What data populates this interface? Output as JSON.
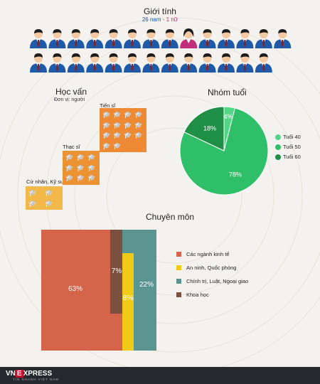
{
  "gender": {
    "title": "Giới tính",
    "male_text": "26 nam",
    "sep": " - ",
    "female_text": "1 nữ",
    "male_color": "#1e5aa8",
    "female_color": "#c0307a",
    "icons_row1": [
      "male",
      "male",
      "male",
      "male",
      "male",
      "male",
      "male",
      "male",
      "female",
      "male",
      "male",
      "male",
      "male",
      "male"
    ],
    "icons_row2": [
      "male",
      "male",
      "male",
      "male",
      "male",
      "male",
      "male",
      "male",
      "male",
      "male",
      "male",
      "male",
      "male"
    ]
  },
  "education": {
    "title": "Học vấn",
    "unit": "Đơn vị: người",
    "groups": [
      {
        "label": "Cử nhân, Kỹ sư",
        "count": 4,
        "color": "#f2b94a"
      },
      {
        "label": "Thạc sĩ",
        "count": 9,
        "color": "#ec9233"
      },
      {
        "label": "Tiến sĩ",
        "count": 14,
        "color": "#ee8a34"
      }
    ],
    "icon": "graduation-cap-icon"
  },
  "age": {
    "title": "Nhóm tuổi",
    "legend": [
      "Tuổi 40",
      "Tuổi 50",
      "Tuổi 60"
    ]
  },
  "expertise": {
    "title": "Chuyên môn",
    "legend": [
      "Các ngành kinh tế",
      "An ninh, Quốc phòng",
      "Chính trị, Luật, Ngoại giao",
      "Khoa học"
    ]
  },
  "chart_data": [
    {
      "type": "pie",
      "title": "Nhóm tuổi",
      "categories": [
        "Tuổi 40",
        "Tuổi 50",
        "Tuổi 60"
      ],
      "values": [
        4,
        78,
        18
      ],
      "labels": [
        "4%",
        "78%",
        "18%"
      ],
      "colors": [
        "#52d685",
        "#2fbf68",
        "#1f8f48"
      ],
      "legend_position": "right"
    },
    {
      "type": "area",
      "title": "Chuyên môn",
      "categories": [
        "Các ngành kinh tế",
        "An ninh, Quốc phòng",
        "Chính trị, Luật, Ngoại giao",
        "Khoa học"
      ],
      "values": [
        63,
        8,
        22,
        7
      ],
      "labels": [
        "63%",
        "8%",
        "22%",
        "7%"
      ],
      "colors": [
        "#d4644a",
        "#f1c919",
        "#5b9591",
        "#7a5140"
      ],
      "legend_position": "right"
    },
    {
      "type": "bar",
      "title": "Học vấn",
      "categories": [
        "Cử nhân, Kỹ sư",
        "Thạc sĩ",
        "Tiến sĩ"
      ],
      "values": [
        4,
        9,
        14
      ],
      "ylabel": "Đơn vị: người"
    }
  ],
  "footer": {
    "brand_left": "VN",
    "brand_mid": "E",
    "brand_right": "XPRESS",
    "tagline": "TIN NHANH VIỆT NAM"
  }
}
